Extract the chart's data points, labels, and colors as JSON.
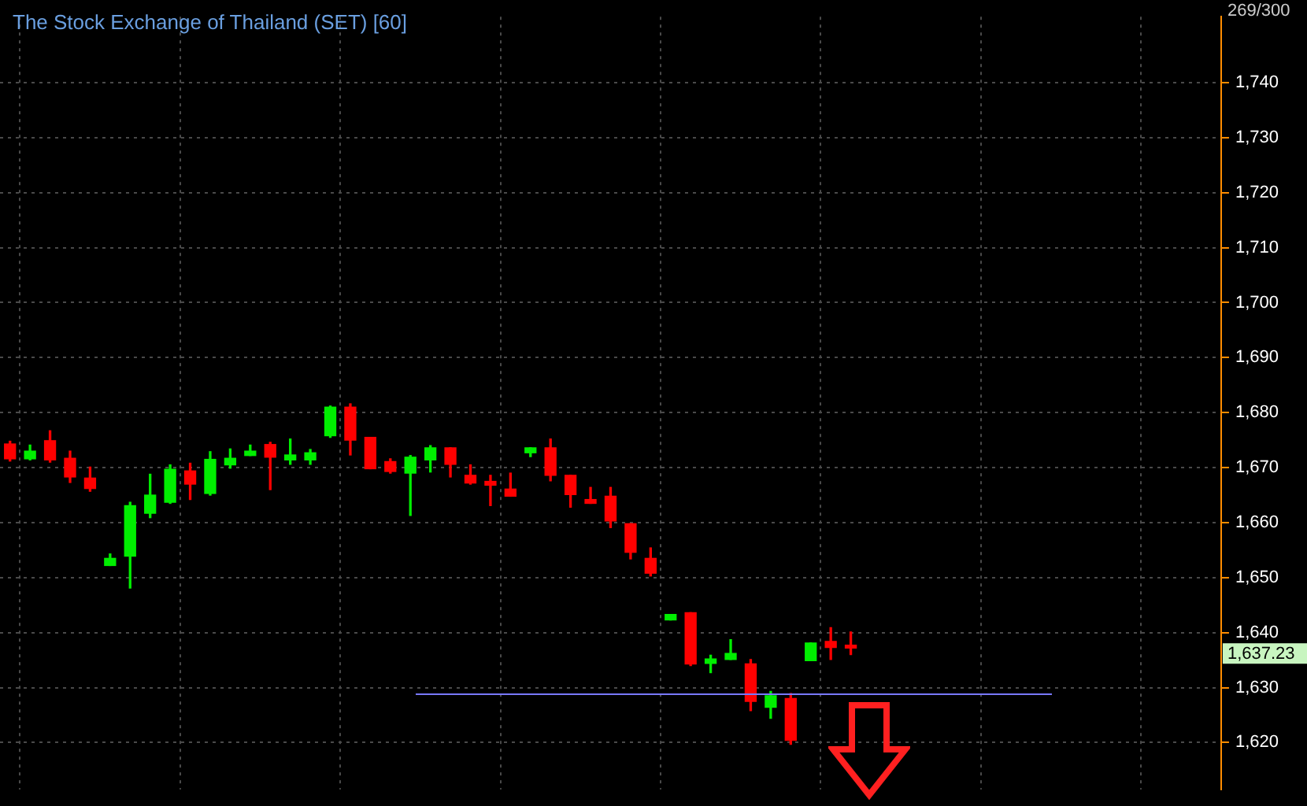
{
  "chart_data": {
    "type": "candlestick",
    "title": "The Stock Exchange of Thailand (SET) [60]",
    "categories": [
      null,
      null,
      null,
      null,
      null,
      null,
      null,
      null,
      null,
      null,
      null,
      null,
      null,
      null,
      null,
      null,
      null,
      null,
      null,
      null,
      null,
      null,
      null,
      null,
      null,
      null,
      null,
      null,
      null,
      null,
      null,
      null,
      null,
      null,
      null,
      null,
      null,
      null,
      null,
      null,
      null,
      null,
      null,
      null,
      null,
      null,
      null,
      null,
      null,
      null,
      null,
      null,
      null,
      null,
      null,
      null,
      null,
      null,
      null,
      null,
      null
    ],
    "ohlc": [
      [
        1674.3,
        1674.8,
        1671.2,
        1671.6
      ],
      [
        1671.6,
        1674.1,
        1671.4,
        1673.0
      ],
      [
        1674.9,
        1676.7,
        1671.0,
        1671.4
      ],
      [
        1671.7,
        1673.0,
        1667.3,
        1668.3
      ],
      [
        1668.1,
        1670.1,
        1665.7,
        1666.2
      ],
      [
        1652.2,
        1654.3,
        1652.2,
        1653.5
      ],
      [
        1653.9,
        1663.7,
        1648.1,
        1663.1
      ],
      [
        1661.7,
        1668.8,
        1660.9,
        1665.0
      ],
      [
        1663.7,
        1670.5,
        1663.5,
        1669.7
      ],
      [
        1669.4,
        1670.8,
        1664.2,
        1667.0
      ],
      [
        1665.3,
        1672.9,
        1665.0,
        1671.5
      ],
      [
        1670.5,
        1673.4,
        1669.9,
        1671.7
      ],
      [
        1672.2,
        1674.1,
        1672.2,
        1673.0
      ],
      [
        1674.2,
        1674.6,
        1666.0,
        1671.9
      ],
      [
        1671.4,
        1675.2,
        1670.6,
        1672.3
      ],
      [
        1671.4,
        1673.3,
        1670.6,
        1672.7
      ],
      [
        1675.8,
        1681.2,
        1675.5,
        1681.0
      ],
      [
        1681.0,
        1681.6,
        1672.3,
        1675.0
      ],
      [
        1675.5,
        1675.5,
        1669.8,
        1669.8
      ],
      [
        1671.1,
        1671.6,
        1669.0,
        1669.3
      ],
      [
        1669.0,
        1672.2,
        1661.3,
        1671.9
      ],
      [
        1671.4,
        1674.0,
        1669.2,
        1673.6
      ],
      [
        1673.6,
        1673.6,
        1668.3,
        1670.6
      ],
      [
        1668.6,
        1670.5,
        1667.0,
        1667.2
      ],
      [
        1667.5,
        1668.6,
        1663.1,
        1666.8
      ],
      [
        1666.1,
        1669.0,
        1664.8,
        1664.8
      ],
      [
        1672.7,
        1673.6,
        1672.0,
        1673.6
      ],
      [
        1673.6,
        1675.2,
        1667.6,
        1668.6
      ],
      [
        1668.6,
        1668.6,
        1662.8,
        1665.1
      ],
      [
        1664.2,
        1666.4,
        1663.5,
        1663.5
      ],
      [
        1664.8,
        1666.4,
        1659.1,
        1660.3
      ],
      [
        1659.8,
        1659.8,
        1653.4,
        1654.6
      ],
      [
        1653.5,
        1655.4,
        1650.3,
        1650.8
      ],
      [
        1642.3,
        1643.3,
        1642.3,
        1643.3
      ],
      [
        1643.6,
        1643.6,
        1634.0,
        1634.3
      ],
      [
        1634.4,
        1635.9,
        1632.7,
        1635.2
      ],
      [
        1635.1,
        1638.7,
        1635.1,
        1636.2
      ],
      [
        1634.3,
        1635.1,
        1625.8,
        1627.5
      ],
      [
        1626.4,
        1629.3,
        1624.4,
        1628.5
      ],
      [
        1628.0,
        1628.9,
        1619.7,
        1620.4
      ],
      [
        1634.9,
        1638.1,
        1634.9,
        1638.1
      ],
      [
        1638.4,
        1640.9,
        1635.1,
        1637.3
      ],
      [
        1637.7,
        1640.1,
        1636.0,
        1637.2
      ],
      null,
      null,
      null,
      null,
      null,
      null,
      null,
      null,
      null,
      null,
      null,
      null,
      null,
      null,
      null,
      null,
      null,
      null
    ],
    "colors": [
      "#ff0000",
      "#00ee00",
      "#ff0000",
      "#ff0000",
      "#ff0000",
      "#00ee00",
      "#00ee00",
      "#00ee00",
      "#00ee00",
      "#ff0000",
      "#00ee00",
      "#00ee00",
      "#00ee00",
      "#ff0000",
      "#00ee00",
      "#00ee00",
      "#00ee00",
      "#ff0000",
      "#ff0000",
      "#ff0000",
      "#00ee00",
      "#00ee00",
      "#ff0000",
      "#ff0000",
      "#ff0000",
      "#ff0000",
      "#00ee00",
      "#ff0000",
      "#ff0000",
      "#ff0000",
      "#ff0000",
      "#ff0000",
      "#ff0000",
      "#00ee00",
      "#ff0000",
      "#00ee00",
      "#00ee00",
      "#ff0000",
      "#00ee00",
      "#ff0000",
      "#00ee00",
      "#ff0000",
      "#ff0000",
      null,
      null,
      null,
      null,
      null,
      null,
      null,
      null,
      null,
      null,
      null,
      null,
      null,
      null,
      null,
      null,
      null,
      null
    ],
    "ylim": [
      1611.5,
      1752
    ],
    "yticks": [
      {
        "value": 1620,
        "label": "1,620"
      },
      {
        "value": 1630,
        "label": "1,630"
      },
      {
        "value": 1640,
        "label": "1,640"
      },
      {
        "value": 1650,
        "label": "1,650"
      },
      {
        "value": 1660,
        "label": "1,660"
      },
      {
        "value": 1670,
        "label": "1,670"
      },
      {
        "value": 1680,
        "label": "1,680"
      },
      {
        "value": 1690,
        "label": "1,690"
      },
      {
        "value": 1700,
        "label": "1,700"
      },
      {
        "value": 1710,
        "label": "1,710"
      },
      {
        "value": 1720,
        "label": "1,720"
      },
      {
        "value": 1730,
        "label": "1,730"
      },
      {
        "value": 1740,
        "label": "1,740"
      }
    ],
    "ref_lines": [
      {
        "axis": "y",
        "value": 1628.8,
        "color": "#7878ff"
      }
    ],
    "annotations": [
      "269/300",
      "1,637.23"
    ],
    "grid": true,
    "legend": false,
    "tick_labels": "y"
  }
}
